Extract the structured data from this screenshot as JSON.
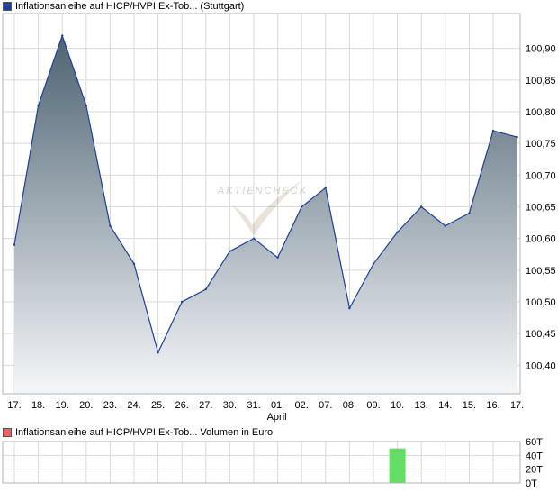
{
  "price_legend": {
    "text": "Inflationsanleihe auf HICP/HVPI Ex-Tob... (Stuttgart)",
    "color": "#1f3f9a"
  },
  "volume_legend": {
    "text": "Inflationsanleihe auf HICP/HVPI Ex-Tob... Volumen in Euro",
    "color": "#e06666"
  },
  "watermark": "AKTIENCHECK",
  "chart_data": [
    {
      "type": "area",
      "series": [
        {
          "name": "Inflationsanleihe auf HICP/HVPI Ex-Tob... (Stuttgart)",
          "values": [
            100.59,
            100.81,
            100.92,
            100.81,
            100.62,
            100.56,
            100.42,
            100.5,
            100.52,
            100.58,
            100.6,
            100.57,
            100.65,
            100.68,
            100.49,
            100.56,
            100.61,
            100.65,
            100.62,
            100.64,
            100.77,
            100.76
          ]
        }
      ],
      "x": [
        "17.",
        "18.",
        "19.",
        "20.",
        "23.",
        "24.",
        "25.",
        "26.",
        "27.",
        "30.",
        "31.",
        "01.",
        "02.",
        "07.",
        "08.",
        "09.",
        "10.",
        "13.",
        "14.",
        "15.",
        "16.",
        "17."
      ],
      "x_sublabels": [
        {
          "index": 11,
          "label": "April"
        }
      ],
      "y_ticks": [
        "100,40",
        "100,45",
        "100,50",
        "100,55",
        "100,60",
        "100,65",
        "100,70",
        "100,75",
        "100,80",
        "100,85",
        "100,90"
      ],
      "y_tick_values": [
        100.4,
        100.45,
        100.5,
        100.55,
        100.6,
        100.65,
        100.7,
        100.75,
        100.8,
        100.85,
        100.9
      ],
      "ylim": [
        100.355,
        100.955
      ],
      "grid": true,
      "line_color": "#1f3f9a",
      "fill_top_color": "#4e6372",
      "fill_bottom_color": "#f5f7f9"
    },
    {
      "type": "bar",
      "series": [
        {
          "name": "Volumen in Euro",
          "values": [
            0,
            0,
            0,
            0,
            0,
            0,
            0,
            0,
            0,
            0,
            0,
            0,
            0,
            0,
            0,
            0,
            50000,
            0,
            0,
            0,
            0,
            0
          ]
        }
      ],
      "y_ticks": [
        "0T",
        "20T",
        "40T",
        "60T"
      ],
      "y_tick_values": [
        0,
        20000,
        40000,
        60000
      ],
      "ylim": [
        0,
        60000
      ],
      "grid": true,
      "bar_color": "#66dd66"
    }
  ]
}
